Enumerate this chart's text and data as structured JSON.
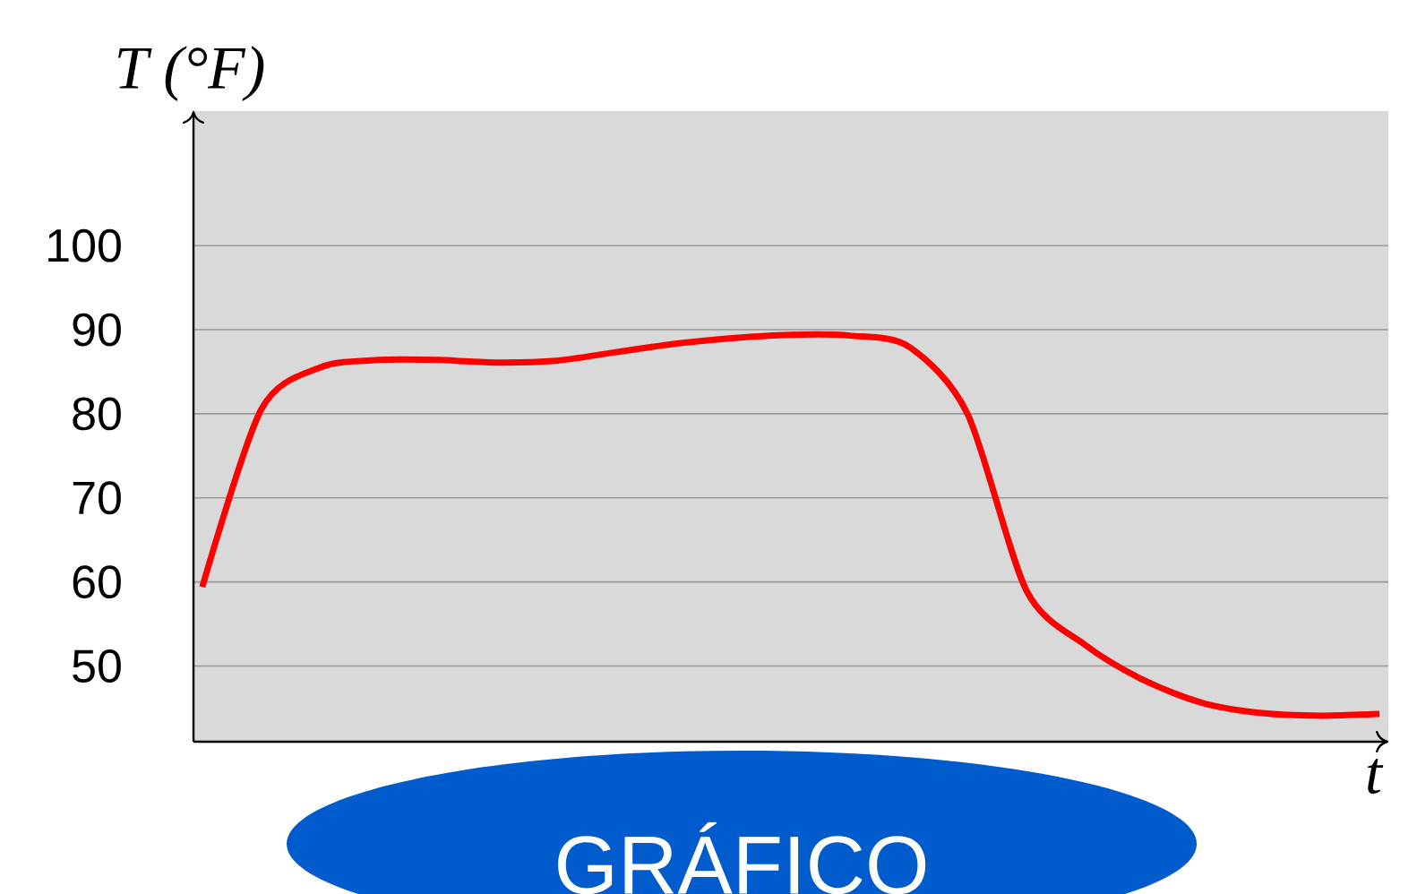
{
  "chart_data": {
    "type": "line",
    "xlabel": "t",
    "ylabel": "T (°F)",
    "categories": [
      null,
      null,
      null,
      null,
      null,
      null,
      null,
      null,
      null,
      null,
      null,
      null,
      null,
      null,
      null,
      null,
      null,
      null,
      null,
      null,
      null
    ],
    "values": [
      59.4,
      80.5,
      85.5,
      86.4,
      86.4,
      86.1,
      86.3,
      87.3,
      88.3,
      89,
      89.4,
      89.3,
      88,
      80,
      59,
      52.5,
      48.3,
      45.6,
      44.4,
      44.1,
      44.3
    ],
    "color": "#ff0000",
    "ylim": [
      41,
      116
    ],
    "yticks": [
      50,
      60,
      70,
      80,
      90,
      100
    ],
    "grid": "y",
    "tick_labels": "y",
    "annotations": [
      "GRÁFICO"
    ]
  }
}
